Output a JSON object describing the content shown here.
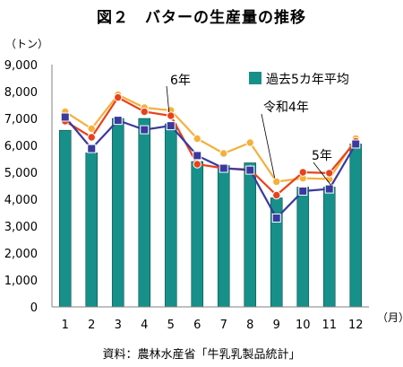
{
  "figure": {
    "title": "図２　バターの生産量の推移",
    "unit_label": "（トン）",
    "month_unit": "（月）",
    "source": "資料：農林水産省「牛乳乳製品統計」"
  },
  "colors": {
    "bars": "#17908A",
    "bars_edge": "#0b4f4a",
    "r6": "#e8421c",
    "r4": "#f5b03c",
    "r5": "#3a3a9e",
    "axis": "#808080"
  },
  "chart_data": {
    "type": "bar",
    "categories": [
      "1",
      "2",
      "3",
      "4",
      "5",
      "6",
      "7",
      "8",
      "9",
      "10",
      "11",
      "12"
    ],
    "ylim": [
      0,
      9000
    ],
    "yticks": [
      "0",
      "1,000",
      "2,000",
      "3,000",
      "4,000",
      "5,000",
      "6,000",
      "7,000",
      "8,000",
      "9,000"
    ],
    "grid": false,
    "legend_position": "top-right",
    "series": [
      {
        "name": "過去5カ年平均",
        "type": "bar",
        "values": [
          6560,
          5720,
          7000,
          7000,
          6800,
          5400,
          5250,
          5350,
          4050,
          4450,
          4450,
          6050
        ]
      },
      {
        "name": "6年",
        "type": "line",
        "values": [
          6900,
          6300,
          7780,
          7250,
          7100,
          5300,
          5150,
          5100,
          4150,
          5000,
          4970,
          6150
        ]
      },
      {
        "name": "令和4年",
        "type": "line",
        "values": [
          7250,
          6620,
          7880,
          7400,
          7300,
          6250,
          5700,
          6100,
          4650,
          4780,
          4750,
          6250
        ]
      },
      {
        "name": "5年",
        "type": "line",
        "values": [
          7050,
          5880,
          6930,
          6580,
          6730,
          5620,
          5150,
          5080,
          3300,
          4300,
          4380,
          6050
        ]
      }
    ]
  }
}
